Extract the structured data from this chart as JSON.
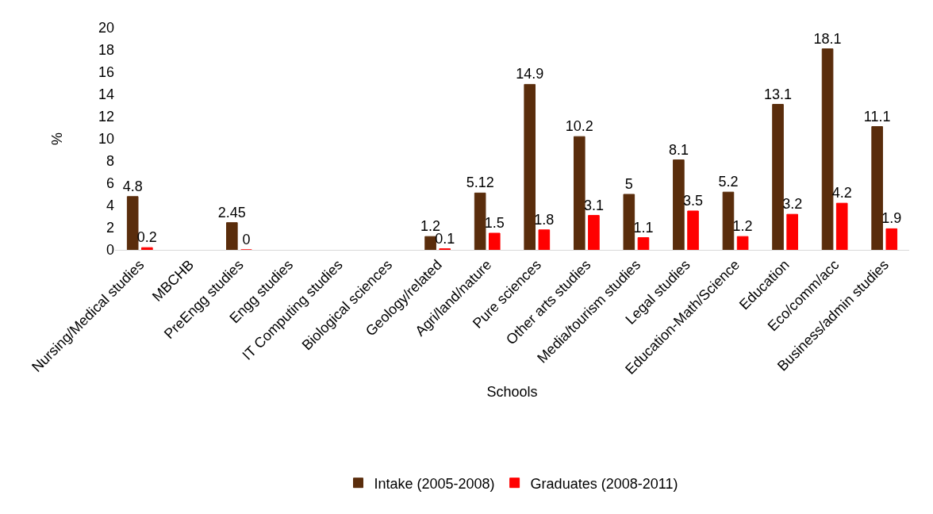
{
  "chart_data": {
    "type": "bar",
    "xlabel": "Schools",
    "ylabel": "%",
    "categories": [
      "Nursing/Medical studies",
      "MBCHB",
      "PreEngg studies",
      "Engg studies",
      "IT Computing studies",
      "Biological sciences",
      "Geology/related",
      "Agri/land/nature",
      "Pure sciences",
      "Other arts studies",
      "Media/tourism studies",
      "Legal studies",
      "Education-Math/Science",
      "Education",
      "Eco/comm/acc",
      "Business/admin studies"
    ],
    "series": [
      {
        "name": "Intake (2005-2008)",
        "color": "#5a2d0c",
        "values": [
          4.8,
          null,
          2.45,
          null,
          null,
          null,
          1.2,
          5.12,
          14.9,
          10.2,
          5,
          8.1,
          5.2,
          13.1,
          18.1,
          11.1
        ]
      },
      {
        "name": "Graduates (2008-2011)",
        "color": "#ff0000",
        "values": [
          0.2,
          null,
          0,
          null,
          null,
          null,
          0.1,
          1.5,
          1.8,
          3.1,
          1.1,
          3.5,
          1.2,
          3.2,
          4.2,
          1.9
        ]
      }
    ],
    "ylim": [
      0,
      20
    ],
    "yticks": [
      0,
      2,
      4,
      6,
      8,
      10,
      12,
      14,
      16,
      18,
      20
    ],
    "grid": false,
    "legend": "bottom",
    "data_labels": true
  }
}
